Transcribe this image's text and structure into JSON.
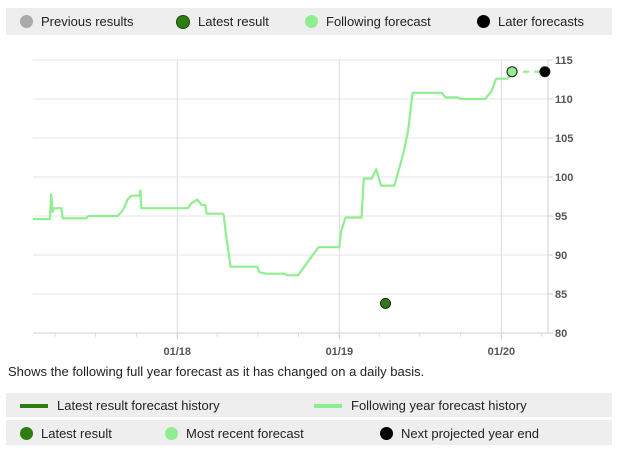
{
  "legend_top": [
    {
      "label": "Previous results",
      "color": "#aaaaaa"
    },
    {
      "label": "Latest result",
      "color": "#2e7d12"
    },
    {
      "label": "Following forecast",
      "color": "#90ee90"
    },
    {
      "label": "Later forecasts",
      "color": "#000000"
    }
  ],
  "caption": "Shows the following full year forecast as it has changed on a daily basis.",
  "legend_lines": [
    {
      "label": "Latest result forecast history",
      "color": "#2e7d12"
    },
    {
      "label": "Following year forecast history",
      "color": "#90ee90"
    }
  ],
  "legend_dots": [
    {
      "label": "Latest result",
      "color": "#2e7d12"
    },
    {
      "label": "Most recent forecast",
      "color": "#90ee90"
    },
    {
      "label": "Next projected year end",
      "color": "#000000"
    }
  ],
  "chart_data": {
    "type": "line",
    "x_tick_labels": [
      "01/18",
      "01/19",
      "01/20"
    ],
    "y_ticks": [
      80,
      85,
      90,
      95,
      100,
      105,
      110,
      115
    ],
    "ylim": [
      80,
      115
    ],
    "xlim": [
      "2017-02-10",
      "2020-04-15"
    ],
    "grid": true,
    "series": [
      {
        "color": "#90ee90",
        "points": [
          [
            "2017-02-10",
            94.6
          ],
          [
            "2017-03-20",
            94.6
          ],
          [
            "2017-03-23",
            97.8
          ],
          [
            "2017-03-26",
            95.5
          ],
          [
            "2017-03-29",
            96.0
          ],
          [
            "2017-04-15",
            96.0
          ],
          [
            "2017-04-18",
            94.7
          ],
          [
            "2017-06-10",
            94.7
          ],
          [
            "2017-06-15",
            95.0
          ],
          [
            "2017-08-20",
            95.0
          ],
          [
            "2017-09-01",
            95.8
          ],
          [
            "2017-09-12",
            97.2
          ],
          [
            "2017-09-20",
            97.6
          ],
          [
            "2017-10-08",
            97.6
          ],
          [
            "2017-10-10",
            98.3
          ],
          [
            "2017-10-12",
            96.0
          ],
          [
            "2018-01-25",
            96.0
          ],
          [
            "2018-02-01",
            96.6
          ],
          [
            "2018-02-15",
            97.1
          ],
          [
            "2018-02-25",
            96.4
          ],
          [
            "2018-03-05",
            96.4
          ],
          [
            "2018-03-08",
            95.3
          ],
          [
            "2018-04-15",
            95.3
          ],
          [
            "2018-04-22",
            92.0
          ],
          [
            "2018-05-01",
            88.5
          ],
          [
            "2018-06-30",
            88.5
          ],
          [
            "2018-07-05",
            87.8
          ],
          [
            "2018-07-20",
            87.6
          ],
          [
            "2018-08-31",
            87.6
          ],
          [
            "2018-09-05",
            87.4
          ],
          [
            "2018-09-30",
            87.4
          ],
          [
            "2018-11-15",
            91.0
          ],
          [
            "2019-01-01",
            91.0
          ],
          [
            "2019-01-05",
            93.0
          ],
          [
            "2019-01-15",
            94.8
          ],
          [
            "2019-02-20",
            94.8
          ],
          [
            "2019-02-25",
            99.8
          ],
          [
            "2019-03-15",
            99.8
          ],
          [
            "2019-03-25",
            101.0
          ],
          [
            "2019-04-05",
            98.9
          ],
          [
            "2019-05-05",
            98.9
          ],
          [
            "2019-05-25",
            103.0
          ],
          [
            "2019-06-05",
            106.0
          ],
          [
            "2019-06-15",
            110.8
          ],
          [
            "2019-08-20",
            110.8
          ],
          [
            "2019-08-28",
            110.2
          ],
          [
            "2019-09-25",
            110.2
          ],
          [
            "2019-10-01",
            110.0
          ],
          [
            "2019-11-25",
            110.0
          ],
          [
            "2019-12-10",
            111.0
          ],
          [
            "2019-12-15",
            111.8
          ],
          [
            "2019-12-20",
            112.6
          ],
          [
            "2019-12-31",
            112.6
          ],
          [
            "2020-01-15",
            112.6
          ],
          [
            "2020-01-25",
            113.5
          ]
        ]
      }
    ],
    "dashed_segment": {
      "color": "#90ee90",
      "from": [
        "2020-01-25",
        113.5
      ],
      "to": [
        "2020-04-08",
        113.5
      ]
    },
    "markers": [
      {
        "legend": "Latest result",
        "x": "2019-04-15",
        "y": 83.8,
        "color": "#2e7d12"
      },
      {
        "legend": "Most recent forecast",
        "x": "2020-01-25",
        "y": 113.5,
        "color": "#90ee90"
      },
      {
        "legend": "Next projected year end",
        "x": "2020-04-08",
        "y": 113.5,
        "color": "#000000"
      }
    ]
  }
}
